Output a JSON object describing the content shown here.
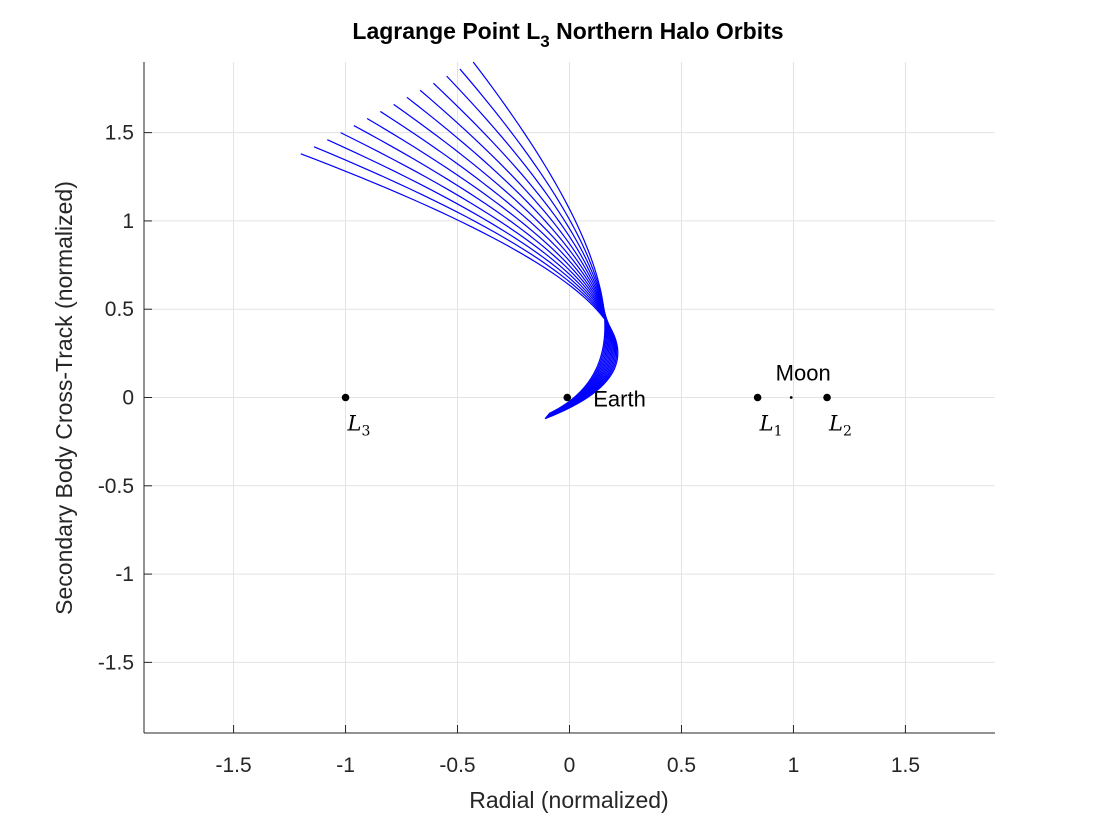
{
  "chart_data": {
    "type": "line",
    "title": "Lagrange Point L",
    "title_sub": "3",
    "title_tail": " Northern Halo Orbits",
    "xlabel": "Radial (normalized)",
    "ylabel": "Secondary Body Cross-Track (normalized)",
    "xlim": [
      -1.9,
      1.9
    ],
    "ylim": [
      -1.9,
      1.9
    ],
    "xticks": [
      -1.5,
      -1,
      -0.5,
      0,
      0.5,
      1,
      1.5
    ],
    "xtick_labels": [
      "-1.5",
      "-1",
      "-0.5",
      "0",
      "0.5",
      "1",
      "1.5"
    ],
    "yticks": [
      -1.5,
      -1,
      -0.5,
      0,
      0.5,
      1,
      1.5
    ],
    "ytick_labels": [
      "-1.5",
      "-1",
      "-0.5",
      "0",
      "0.5",
      "1",
      "1.5"
    ],
    "grid": true,
    "series_color": "#0000ff",
    "orbit_family": {
      "count": 14,
      "start_x": [
        -0.11,
        -0.09
      ],
      "start_y": [
        -0.12,
        -0.09
      ],
      "vertex_x": [
        0.07,
        0.09
      ],
      "vertex_y": [
        0.5,
        0.6
      ],
      "end_x": [
        -1.2,
        -0.43
      ],
      "end_y": [
        1.38,
        1.9
      ]
    },
    "points": [
      {
        "name": "L3",
        "x": -1.0,
        "y": 0,
        "label": "L",
        "sub": "3"
      },
      {
        "name": "Earth",
        "x": -0.01,
        "y": 0,
        "label": "Earth"
      },
      {
        "name": "L1",
        "x": 0.84,
        "y": 0,
        "label": "L",
        "sub": "1"
      },
      {
        "name": "Moon",
        "x": 0.99,
        "y": 0,
        "label": "Moon"
      },
      {
        "name": "L2",
        "x": 1.15,
        "y": 0,
        "label": "L",
        "sub": "2"
      }
    ]
  }
}
